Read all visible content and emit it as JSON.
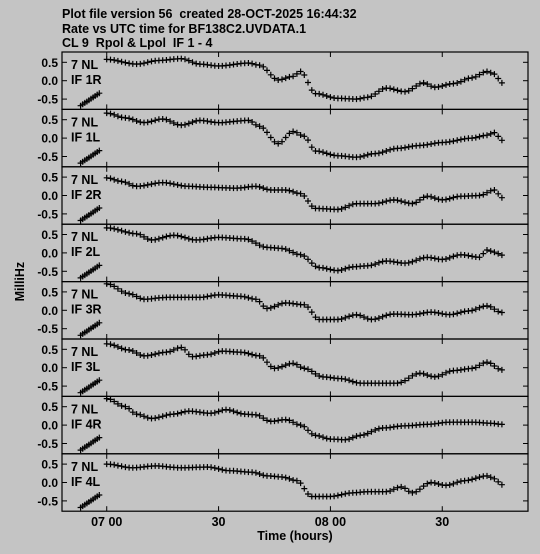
{
  "header": {
    "line1": "Plot file version 56  created 28-OCT-2025 16:44:32",
    "line2": "Rate vs UTC time for BF138C2.UVDATA.1",
    "line3": "CL 9  Rpol & Lpol  IF 1 - 4"
  },
  "chart_data": {
    "type": "scatter",
    "ylabel": "MilliHz",
    "xlabel": "Time (hours)",
    "x_ticks": [
      "07 00",
      "30",
      "08 00",
      "30"
    ],
    "x_tick_minutes": [
      0,
      30,
      60,
      90
    ],
    "y_ticks": [
      "0.5",
      "0.0",
      "-0.5"
    ],
    "y_tick_values": [
      0.5,
      0.0,
      -0.5
    ],
    "ylim": [
      -0.78,
      0.78
    ],
    "xlim_minutes": [
      -12,
      113
    ],
    "marker": "+",
    "panels": [
      {
        "station": "7 NL",
        "label": "IF 1R",
        "early": {
          "start_min": -7,
          "end_min": -2,
          "start_y": -0.68,
          "end_y": -0.34
        },
        "start_min": 0,
        "end_min": 106,
        "knots": [
          [
            0,
            0.58
          ],
          [
            8,
            0.45
          ],
          [
            14,
            0.55
          ],
          [
            20,
            0.6
          ],
          [
            25,
            0.45
          ],
          [
            30,
            0.4
          ],
          [
            38,
            0.48
          ],
          [
            41,
            0.42
          ],
          [
            46,
            0.02
          ],
          [
            50,
            0.12
          ],
          [
            52,
            0.25
          ],
          [
            56,
            -0.35
          ],
          [
            62,
            -0.48
          ],
          [
            67,
            -0.5
          ],
          [
            70,
            -0.45
          ],
          [
            75,
            -0.2
          ],
          [
            80,
            -0.3
          ],
          [
            85,
            -0.06
          ],
          [
            88,
            -0.18
          ],
          [
            93,
            -0.08
          ],
          [
            98,
            0.08
          ],
          [
            102,
            0.25
          ],
          [
            104,
            0.18
          ],
          [
            106,
            -0.06
          ]
        ]
      },
      {
        "station": "7 NL",
        "label": "IF 1L",
        "early": {
          "start_min": -7,
          "end_min": -2,
          "start_y": -0.68,
          "end_y": -0.34
        },
        "start_min": 0,
        "end_min": 106,
        "knots": [
          [
            0,
            0.68
          ],
          [
            5,
            0.55
          ],
          [
            10,
            0.42
          ],
          [
            15,
            0.52
          ],
          [
            20,
            0.35
          ],
          [
            25,
            0.48
          ],
          [
            30,
            0.42
          ],
          [
            38,
            0.48
          ],
          [
            41,
            0.32
          ],
          [
            46,
            -0.15
          ],
          [
            50,
            0.18
          ],
          [
            53,
            0.05
          ],
          [
            56,
            -0.35
          ],
          [
            62,
            -0.48
          ],
          [
            67,
            -0.52
          ],
          [
            72,
            -0.42
          ],
          [
            78,
            -0.28
          ],
          [
            84,
            -0.2
          ],
          [
            90,
            -0.12
          ],
          [
            98,
            0.0
          ],
          [
            102,
            0.08
          ],
          [
            104,
            0.15
          ],
          [
            106,
            -0.06
          ]
        ]
      },
      {
        "station": "7 NL",
        "label": "IF 2R",
        "early": {
          "start_min": -7,
          "end_min": -2,
          "start_y": -0.68,
          "end_y": -0.34
        },
        "start_min": 0,
        "end_min": 106,
        "knots": [
          [
            0,
            0.48
          ],
          [
            4,
            0.38
          ],
          [
            8,
            0.25
          ],
          [
            15,
            0.35
          ],
          [
            22,
            0.25
          ],
          [
            28,
            0.22
          ],
          [
            35,
            0.2
          ],
          [
            40,
            0.25
          ],
          [
            44,
            0.15
          ],
          [
            48,
            0.15
          ],
          [
            52,
            0.05
          ],
          [
            56,
            -0.35
          ],
          [
            62,
            -0.38
          ],
          [
            67,
            -0.22
          ],
          [
            72,
            -0.22
          ],
          [
            77,
            -0.12
          ],
          [
            82,
            -0.22
          ],
          [
            86,
            -0.02
          ],
          [
            90,
            -0.12
          ],
          [
            95,
            -0.02
          ],
          [
            100,
            0.0
          ],
          [
            104,
            0.15
          ],
          [
            106,
            -0.06
          ]
        ]
      },
      {
        "station": "7 NL",
        "label": "IF 2L",
        "early": {
          "start_min": -7,
          "end_min": -2,
          "start_y": -0.68,
          "end_y": -0.34
        },
        "start_min": 0,
        "end_min": 106,
        "knots": [
          [
            0,
            0.68
          ],
          [
            8,
            0.52
          ],
          [
            12,
            0.35
          ],
          [
            18,
            0.48
          ],
          [
            24,
            0.35
          ],
          [
            30,
            0.42
          ],
          [
            37,
            0.38
          ],
          [
            43,
            0.15
          ],
          [
            47,
            0.12
          ],
          [
            52,
            -0.05
          ],
          [
            57,
            -0.4
          ],
          [
            62,
            -0.48
          ],
          [
            66,
            -0.38
          ],
          [
            70,
            -0.35
          ],
          [
            75,
            -0.22
          ],
          [
            80,
            -0.28
          ],
          [
            86,
            -0.12
          ],
          [
            90,
            -0.18
          ],
          [
            95,
            -0.05
          ],
          [
            100,
            -0.12
          ],
          [
            102,
            0.08
          ],
          [
            104,
            0.02
          ],
          [
            106,
            -0.06
          ]
        ]
      },
      {
        "station": "7 NL",
        "label": "IF 3R",
        "early": {
          "start_min": -7,
          "end_min": -2,
          "start_y": -0.68,
          "end_y": -0.34
        },
        "start_min": 0,
        "end_min": 106,
        "knots": [
          [
            0,
            0.72
          ],
          [
            6,
            0.45
          ],
          [
            10,
            0.3
          ],
          [
            16,
            0.35
          ],
          [
            25,
            0.35
          ],
          [
            30,
            0.42
          ],
          [
            36,
            0.38
          ],
          [
            40,
            0.3
          ],
          [
            43,
            0.05
          ],
          [
            48,
            0.2
          ],
          [
            53,
            0.15
          ],
          [
            57,
            -0.25
          ],
          [
            62,
            -0.25
          ],
          [
            67,
            -0.12
          ],
          [
            71,
            -0.25
          ],
          [
            77,
            -0.1
          ],
          [
            82,
            -0.12
          ],
          [
            87,
            -0.05
          ],
          [
            92,
            -0.12
          ],
          [
            97,
            -0.02
          ],
          [
            102,
            0.12
          ],
          [
            106,
            -0.06
          ]
        ]
      },
      {
        "station": "7 NL",
        "label": "IF 3L",
        "early": {
          "start_min": -7,
          "end_min": -2,
          "start_y": -0.68,
          "end_y": -0.34
        },
        "start_min": 0,
        "end_min": 106,
        "knots": [
          [
            0,
            0.65
          ],
          [
            6,
            0.48
          ],
          [
            10,
            0.32
          ],
          [
            16,
            0.42
          ],
          [
            20,
            0.55
          ],
          [
            23,
            0.3
          ],
          [
            27,
            0.35
          ],
          [
            31,
            0.45
          ],
          [
            36,
            0.42
          ],
          [
            41,
            0.32
          ],
          [
            45,
            -0.02
          ],
          [
            50,
            0.12
          ],
          [
            53,
            -0.02
          ],
          [
            58,
            -0.25
          ],
          [
            63,
            -0.3
          ],
          [
            68,
            -0.42
          ],
          [
            72,
            -0.42
          ],
          [
            78,
            -0.42
          ],
          [
            84,
            -0.15
          ],
          [
            88,
            -0.25
          ],
          [
            93,
            -0.08
          ],
          [
            98,
            -0.02
          ],
          [
            102,
            0.15
          ],
          [
            106,
            -0.06
          ]
        ]
      },
      {
        "station": "7 NL",
        "label": "IF 4R",
        "early": {
          "start_min": -7,
          "end_min": -2,
          "start_y": -0.68,
          "end_y": -0.34
        },
        "start_min": 0,
        "end_min": 106,
        "knots": [
          [
            0,
            0.72
          ],
          [
            5,
            0.5
          ],
          [
            8,
            0.3
          ],
          [
            12,
            0.18
          ],
          [
            18,
            0.3
          ],
          [
            22,
            0.38
          ],
          [
            28,
            0.32
          ],
          [
            32,
            0.42
          ],
          [
            37,
            0.3
          ],
          [
            40,
            0.28
          ],
          [
            44,
            0.1
          ],
          [
            48,
            0.15
          ],
          [
            52,
            0.0
          ],
          [
            56,
            -0.28
          ],
          [
            60,
            -0.38
          ],
          [
            64,
            -0.4
          ],
          [
            68,
            -0.28
          ],
          [
            74,
            -0.08
          ],
          [
            80,
            -0.02
          ],
          [
            86,
            0.02
          ],
          [
            92,
            0.08
          ],
          [
            98,
            0.08
          ],
          [
            103,
            0.05
          ],
          [
            106,
            0.02
          ]
        ]
      },
      {
        "station": "7 NL",
        "label": "IF 4L",
        "early": {
          "start_min": -7,
          "end_min": -2,
          "start_y": -0.68,
          "end_y": -0.34
        },
        "start_min": 0,
        "end_min": 106,
        "knots": [
          [
            0,
            0.5
          ],
          [
            7,
            0.4
          ],
          [
            13,
            0.45
          ],
          [
            20,
            0.4
          ],
          [
            27,
            0.42
          ],
          [
            33,
            0.32
          ],
          [
            39,
            0.28
          ],
          [
            43,
            0.18
          ],
          [
            47,
            0.15
          ],
          [
            51,
            0.05
          ],
          [
            55,
            -0.38
          ],
          [
            60,
            -0.38
          ],
          [
            66,
            -0.28
          ],
          [
            70,
            -0.25
          ],
          [
            75,
            -0.25
          ],
          [
            79,
            -0.12
          ],
          [
            82,
            -0.28
          ],
          [
            87,
            0.0
          ],
          [
            91,
            -0.08
          ],
          [
            96,
            0.05
          ],
          [
            102,
            0.18
          ],
          [
            104,
            0.1
          ],
          [
            106,
            -0.06
          ]
        ]
      }
    ]
  }
}
